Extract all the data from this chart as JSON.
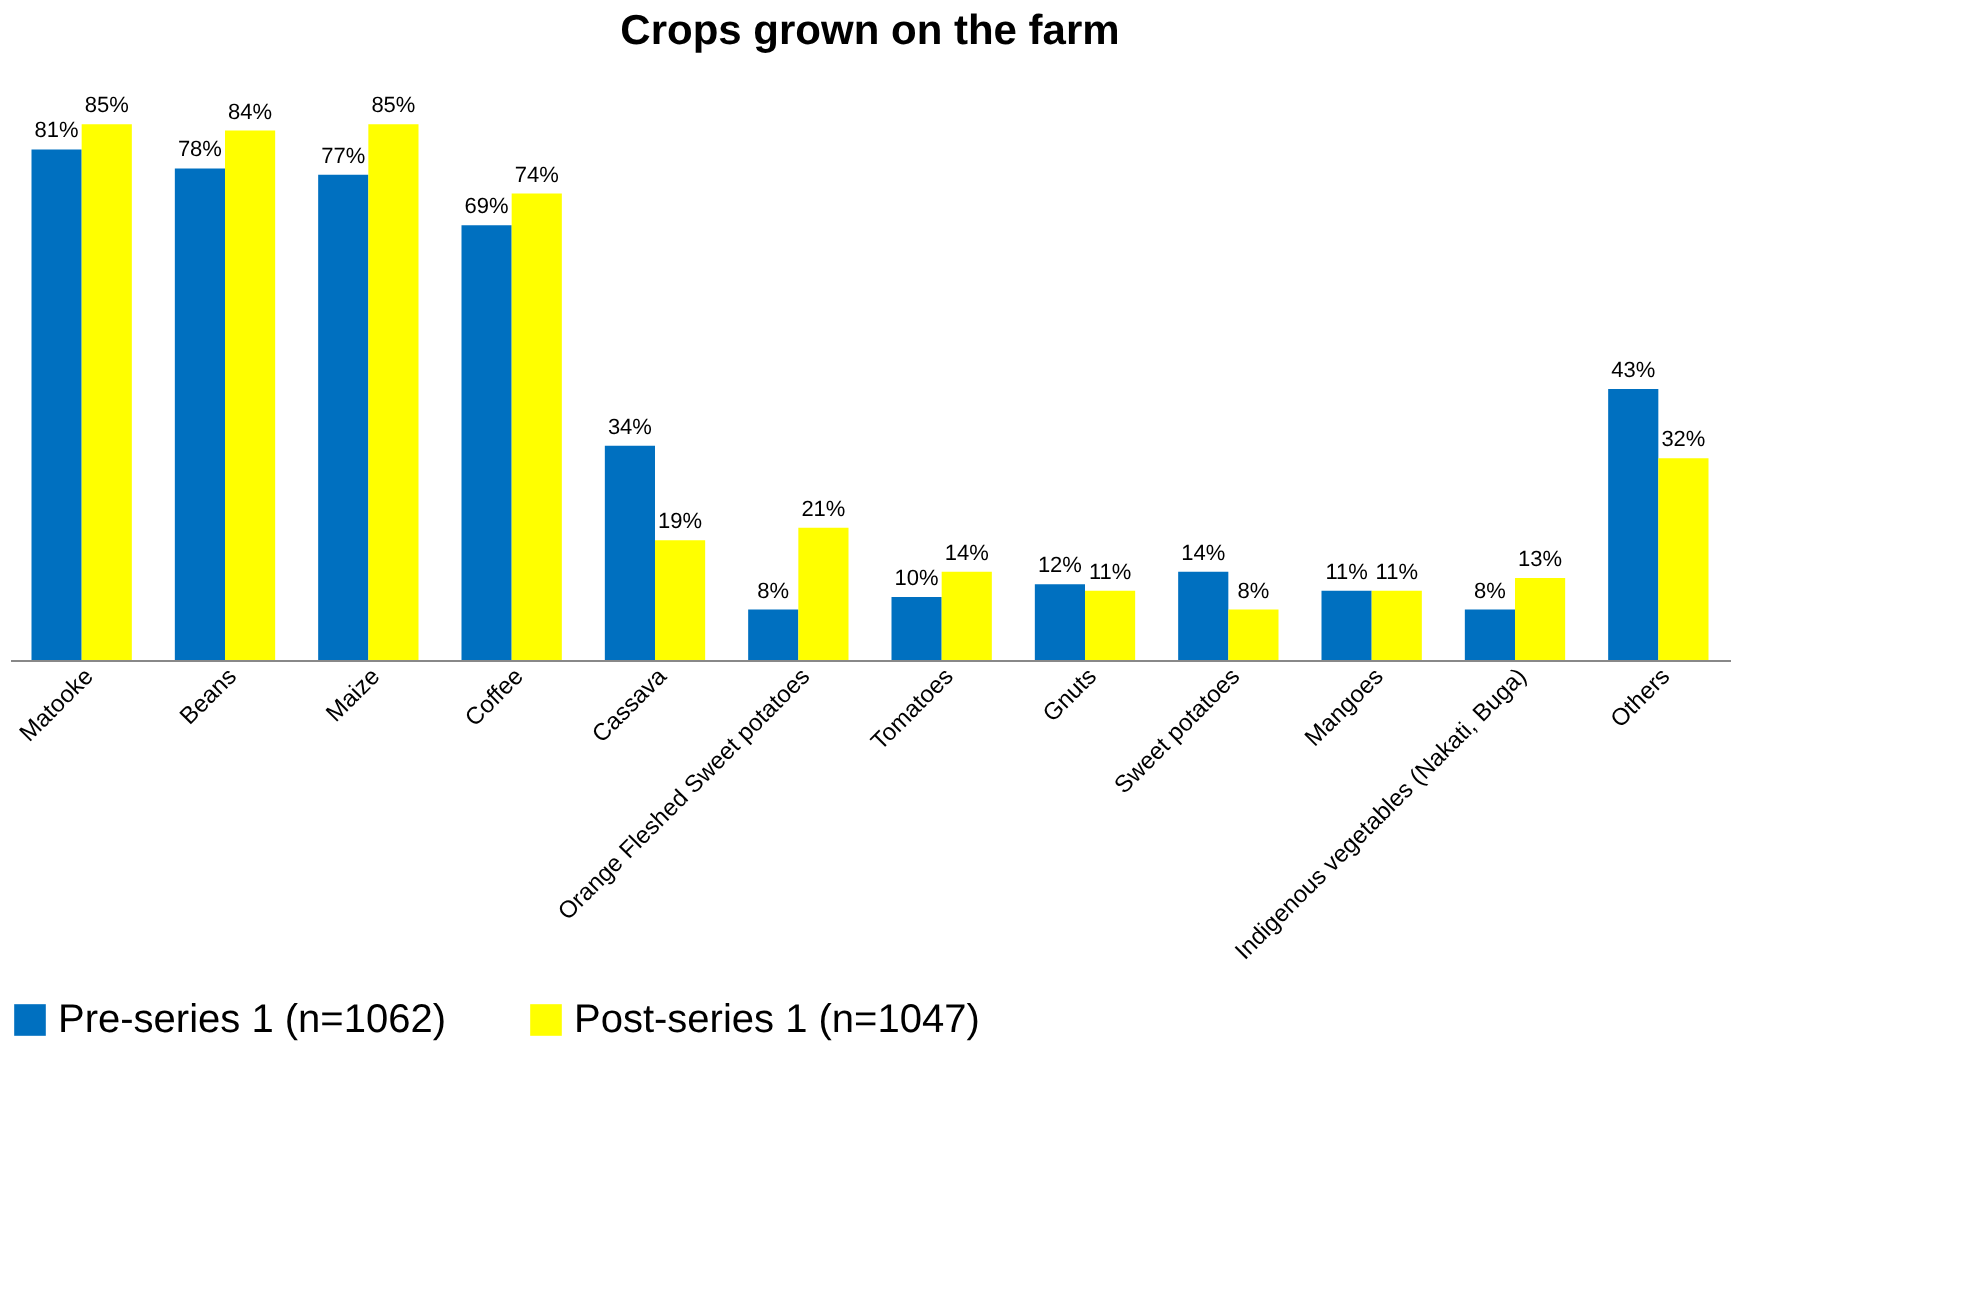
{
  "chart_data": {
    "type": "bar",
    "title": "Crops grown on the farm",
    "categories": [
      "Matooke",
      "Beans",
      "Maize",
      "Coffee",
      "Cassava",
      "Orange Fleshed Sweet potatoes",
      "Tomatoes",
      "Gnuts",
      "Sweet potatoes",
      "Mangoes",
      "Indigenous vegetables (Nakati, Buga)",
      "Others"
    ],
    "series": [
      {
        "name": "Pre-series 1 (n=1062)",
        "color": "#0070c0",
        "values": [
          81,
          78,
          77,
          69,
          34,
          8,
          10,
          12,
          14,
          11,
          8,
          43
        ],
        "value_labels": [
          "81%",
          "78%",
          "77%",
          "69%",
          "34%",
          "8%",
          "10%",
          "12%",
          "14%",
          "11%",
          "8%",
          "43%"
        ]
      },
      {
        "name": "Post-series 1 (n=1047)",
        "color": "#ffff00",
        "values": [
          85,
          84,
          85,
          74,
          19,
          21,
          14,
          11,
          8,
          11,
          13,
          32
        ],
        "value_labels": [
          "85%",
          "84%",
          "85%",
          "74%",
          "19%",
          "21%",
          "14%",
          "11%",
          "8%",
          "11%",
          "13%",
          "32%"
        ]
      }
    ],
    "legend": "bottom",
    "grid": false
  }
}
